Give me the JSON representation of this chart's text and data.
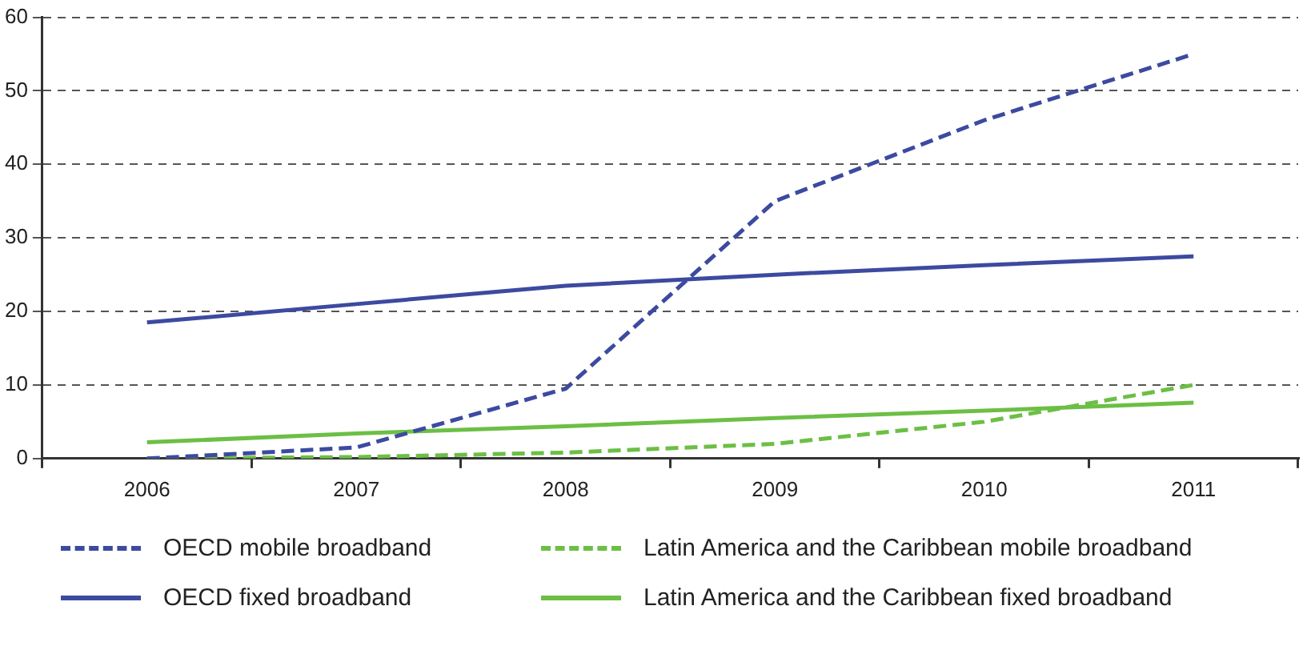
{
  "chart_data": {
    "type": "line",
    "categories": [
      "2006",
      "2007",
      "2008",
      "2009",
      "2010",
      "2011"
    ],
    "series": [
      {
        "name": "OECD mobile broadband",
        "color": "#3c4aa0",
        "line_style": "dashed",
        "values": [
          0,
          1.5,
          9.5,
          35,
          46,
          55
        ]
      },
      {
        "name": "Latin America and the Caribbean mobile broadband",
        "color": "#6cbf45",
        "line_style": "dashed",
        "values": [
          0,
          0.2,
          0.8,
          2,
          5,
          10
        ]
      },
      {
        "name": "OECD fixed broadband",
        "color": "#3c4aa0",
        "line_style": "solid",
        "values": [
          18.5,
          21,
          23.5,
          25,
          26.3,
          27.5
        ]
      },
      {
        "name": "Latin America and the Caribbean fixed broadband",
        "color": "#6cbf45",
        "line_style": "solid",
        "values": [
          2.2,
          3.4,
          4.4,
          5.5,
          6.5,
          7.6
        ]
      }
    ],
    "ylim": [
      0,
      60
    ],
    "yticks": [
      0,
      10,
      20,
      30,
      40,
      50,
      60
    ],
    "grid": "y",
    "legend": "bottom",
    "marker": "none"
  }
}
